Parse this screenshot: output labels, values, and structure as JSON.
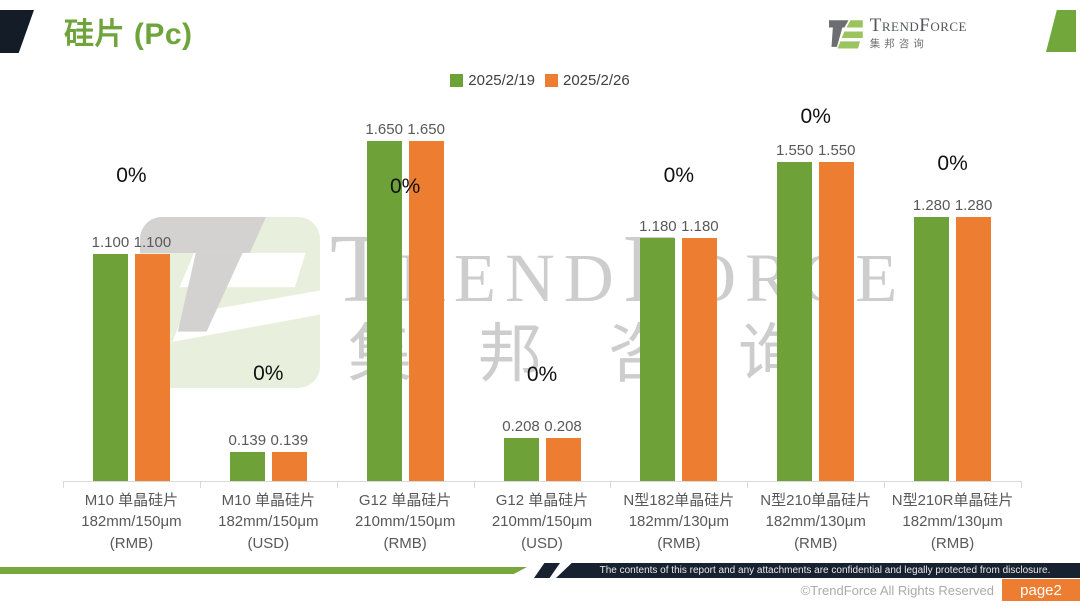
{
  "header": {
    "title": "硅片 (Pc)",
    "logo": {
      "name": "TrendForce",
      "cn": "集邦咨询"
    }
  },
  "legend": {
    "items": [
      {
        "label": "2025/2/19",
        "color": "#6fa139"
      },
      {
        "label": "2025/2/26",
        "color": "#ec7d31"
      }
    ]
  },
  "watermark": {
    "en": "TrendForce",
    "cn": "集邦咨询"
  },
  "chart_data": {
    "type": "bar",
    "title": "硅片 (Pc)",
    "ylim": [
      0,
      1.65
    ],
    "grid": false,
    "legend_position": "top",
    "categories": [
      "M10 单晶硅片 182mm/150μm (RMB)",
      "M10 单晶硅片 182mm/150μm (USD)",
      "G12 单晶硅片 210mm/150μm (RMB)",
      "G12 单晶硅片 210mm/150μm (USD)",
      "N型182单晶硅片 182mm/130μm (RMB)",
      "N型210单晶硅片 182mm/130μm (RMB)",
      "N型210R单晶硅片 182mm/130μm (RMB)"
    ],
    "series": [
      {
        "name": "2025/2/19",
        "color": "#6fa139",
        "values": [
          1.1,
          0.139,
          1.65,
          0.208,
          1.18,
          1.55,
          1.28
        ]
      },
      {
        "name": "2025/2/26",
        "color": "#ec7d31",
        "values": [
          1.1,
          0.139,
          1.65,
          0.208,
          1.18,
          1.55,
          1.28
        ]
      }
    ],
    "groups": [
      {
        "label_lines": [
          "M10 单晶硅片",
          "182mm/150μm",
          "(RMB)"
        ],
        "values": [
          "1.100",
          "1.100"
        ],
        "change": "0%"
      },
      {
        "label_lines": [
          "M10 单晶硅片",
          "182mm/150μm",
          "(USD)"
        ],
        "values": [
          "0.139",
          "0.139"
        ],
        "change": "0%"
      },
      {
        "label_lines": [
          "G12 单晶硅片",
          "210mm/150μm",
          "(RMB)"
        ],
        "values": [
          "1.650",
          "1.650"
        ],
        "change": "0%"
      },
      {
        "label_lines": [
          "G12 单晶硅片",
          "210mm/150μm",
          "(USD)"
        ],
        "values": [
          "0.208",
          "0.208"
        ],
        "change": "0%"
      },
      {
        "label_lines": [
          "N型182单晶硅片",
          "182mm/130μm",
          "(RMB)"
        ],
        "values": [
          "1.180",
          "1.180"
        ],
        "change": "0%"
      },
      {
        "label_lines": [
          "N型210单晶硅片",
          "182mm/130μm",
          "(RMB)"
        ],
        "values": [
          "1.550",
          "1.550"
        ],
        "change": "0%"
      },
      {
        "label_lines": [
          "N型210R单晶硅片",
          "182mm/130μm",
          "(RMB)"
        ],
        "values": [
          "1.280",
          "1.280"
        ],
        "change": "0%"
      }
    ]
  },
  "footer": {
    "confidential": "The contents of this report and any attachments are confidential and legally protected from disclosure.",
    "copyright": "©TrendForce All Rights Reserved",
    "page_label": "page2"
  }
}
